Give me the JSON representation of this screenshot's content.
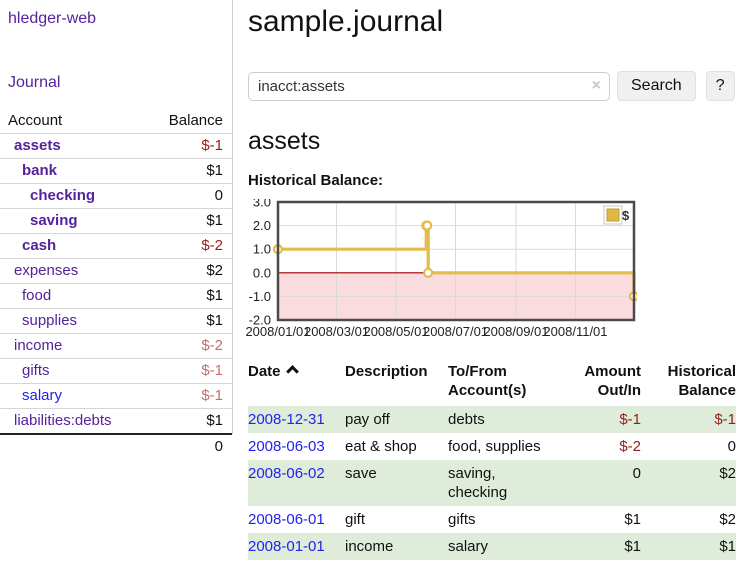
{
  "colors": {
    "purple_link": "#55229b",
    "blue_link": "#2222ee",
    "negative_strong": "#961c1c",
    "negative_muted": "#bf7070",
    "row_green": "#deecd9",
    "chart_gold": "#e2bd4a",
    "chart_gold_fill": "#ddb945",
    "chart_pink": "#fadbde",
    "chart_zero_red": "#a40000",
    "chart_grid": "#d9d9d9",
    "chart_border": "#4a4a4a"
  },
  "app_title": "hledger-web",
  "sidebar": {
    "journal_link": "Journal",
    "table": {
      "account_header": "Account",
      "balance_header": "Balance",
      "rows": [
        {
          "name": "assets",
          "depth": 1,
          "bold": true,
          "balance": "$-1",
          "balance_style": "neg-strong",
          "link_style": "purple"
        },
        {
          "name": "bank",
          "depth": 2,
          "bold": true,
          "balance": "$1",
          "balance_style": "normal",
          "link_style": "purple"
        },
        {
          "name": "checking",
          "depth": 3,
          "bold": true,
          "balance": "0",
          "balance_style": "normal",
          "link_style": "purple"
        },
        {
          "name": "saving",
          "depth": 3,
          "bold": true,
          "balance": "$1",
          "balance_style": "normal",
          "link_style": "purple"
        },
        {
          "name": "cash",
          "depth": 2,
          "bold": true,
          "balance": "$-2",
          "balance_style": "neg-strong",
          "link_style": "purple"
        },
        {
          "name": "expenses",
          "depth": 1,
          "bold": false,
          "balance": "$2",
          "balance_style": "normal",
          "link_style": "purple"
        },
        {
          "name": "food",
          "depth": 2,
          "bold": false,
          "balance": "$1",
          "balance_style": "normal",
          "link_style": "purple"
        },
        {
          "name": "supplies",
          "depth": 2,
          "bold": false,
          "balance": "$1",
          "balance_style": "normal",
          "link_style": "purple"
        },
        {
          "name": "income",
          "depth": 1,
          "bold": false,
          "balance": "$-2",
          "balance_style": "neg-muted",
          "link_style": "purple"
        },
        {
          "name": "gifts",
          "depth": 2,
          "bold": false,
          "balance": "$-1",
          "balance_style": "neg-muted",
          "link_style": "purple"
        },
        {
          "name": "salary",
          "depth": 2,
          "bold": false,
          "balance": "$-1",
          "balance_style": "neg-muted",
          "link_style": "blue"
        },
        {
          "name": "liabilities:debts",
          "depth": 1,
          "bold": false,
          "balance": "$1",
          "balance_style": "normal",
          "link_style": "purple"
        }
      ],
      "total": "0"
    }
  },
  "main": {
    "title": "sample.journal",
    "search": {
      "value": "inacct:assets",
      "clear_icon": "×",
      "search_button": "Search",
      "help_button": "?"
    },
    "account_heading": "assets",
    "chart_title": "Historical Balance:"
  },
  "chart_data": {
    "type": "line",
    "step": true,
    "title": "Historical Balance of assets",
    "series": [
      {
        "name": "$",
        "points": [
          [
            "2008-01-01",
            1
          ],
          [
            "2008-06-01",
            2
          ],
          [
            "2008-06-02",
            2
          ],
          [
            "2008-06-03",
            0
          ],
          [
            "2008-12-31",
            -1
          ]
        ]
      }
    ],
    "x_range": [
      "2008-01-01",
      "2008-12-31"
    ],
    "x_ticks": [
      "2008/01/01",
      "2008/03/01",
      "2008/05/01",
      "2008/07/01",
      "2008/09/01",
      "2008/11/01"
    ],
    "y_ticks": [
      "3.0",
      "2.0",
      "1.0",
      "0.0",
      "-1.0",
      "-2.0"
    ],
    "ylim": [
      -2,
      3
    ],
    "legend": "$",
    "legend_position": "top-right",
    "negative_region_shaded": true,
    "grid": true
  },
  "register": {
    "headers": [
      {
        "line1": "Date",
        "line2": ""
      },
      {
        "line1": "Description",
        "line2": ""
      },
      {
        "line1": "To/From",
        "line2": "Account(s)"
      },
      {
        "line1": "Amount",
        "line2": "Out/In"
      },
      {
        "line1": "Historical",
        "line2": "Balance"
      }
    ],
    "rows": [
      {
        "date": "2008-12-31",
        "description": "pay off",
        "accounts": "debts",
        "amount": "$-1",
        "amount_negative": true,
        "balance": "$-1",
        "balance_negative": true
      },
      {
        "date": "2008-06-03",
        "description": "eat & shop",
        "accounts": "food, supplies",
        "amount": "$-2",
        "amount_negative": true,
        "balance": "0",
        "balance_negative": false
      },
      {
        "date": "2008-06-02",
        "description": "save",
        "accounts": "saving, checking",
        "amount": "0",
        "amount_negative": false,
        "balance": "$2",
        "balance_negative": false
      },
      {
        "date": "2008-06-01",
        "description": "gift",
        "accounts": "gifts",
        "amount": "$1",
        "amount_negative": false,
        "balance": "$2",
        "balance_negative": false
      },
      {
        "date": "2008-01-01",
        "description": "income",
        "accounts": "salary",
        "amount": "$1",
        "amount_negative": false,
        "balance": "$1",
        "balance_negative": false
      }
    ]
  }
}
